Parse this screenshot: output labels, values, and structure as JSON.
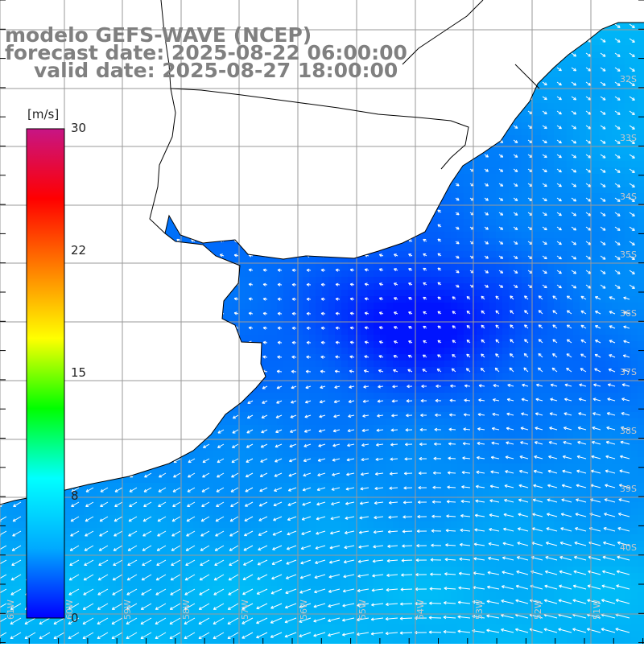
{
  "title": {
    "line1": "modelo GEFS-WAVE (NCEP)",
    "line2": "forecast date: 2025-08-22 06:00:00",
    "line3": "valid date: 2025-08-27 18:00:00"
  },
  "colorbar": {
    "unit": "[m/s]",
    "ticks": [
      "30",
      "22",
      "15",
      "8",
      "0"
    ],
    "colors": [
      "#0000ff",
      "#00aaff",
      "#00ffff",
      "#00ff00",
      "#ffff00",
      "#ff7f00",
      "#ff0000",
      "#c71585"
    ]
  },
  "map": {
    "lat_labels": [
      "32S",
      "33S",
      "34S",
      "35S",
      "36S",
      "37S",
      "38S",
      "39S",
      "40S"
    ],
    "lon_labels": [
      "61W",
      "60W",
      "59W",
      "58W",
      "57W",
      "56W",
      "55W",
      "54W",
      "53W",
      "52W",
      "51W"
    ],
    "colors": {
      "land": "#ffffff",
      "coast": "#000000",
      "grid": "#9a9a9a",
      "arrow": "#ffffff"
    }
  }
}
